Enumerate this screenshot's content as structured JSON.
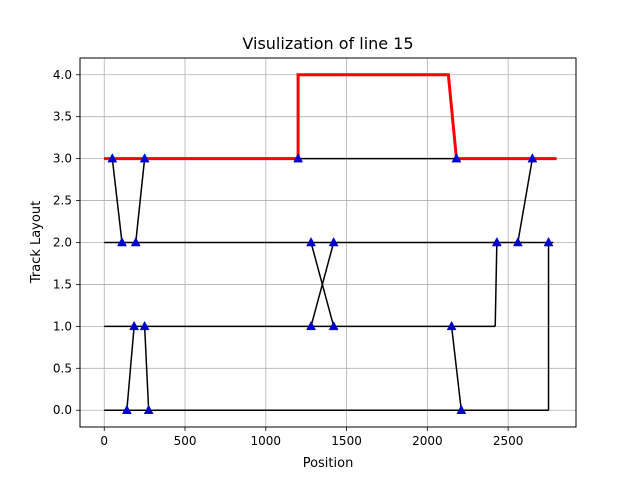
{
  "chart_data": {
    "type": "line",
    "title": "Visulization of line 15",
    "xlabel": "Position",
    "ylabel": "Track Layout",
    "xlim": [
      -150,
      2920
    ],
    "ylim": [
      -0.2,
      4.2
    ],
    "xticks": [
      0,
      500,
      1000,
      1500,
      2000,
      2500
    ],
    "yticks": [
      0.0,
      0.5,
      1.0,
      1.5,
      2.0,
      2.5,
      3.0,
      3.5,
      4.0
    ],
    "xtick_labels": [
      "0",
      "500",
      "1000",
      "1500",
      "2000",
      "2500"
    ],
    "ytick_labels": [
      "0.0",
      "0.5",
      "1.0",
      "1.5",
      "2.0",
      "2.5",
      "3.0",
      "3.5",
      "4.0"
    ],
    "grid": true,
    "colors": {
      "track": "#000000",
      "route": "#ff0000",
      "marker": "#0000cc"
    },
    "tracks": [
      {
        "y": 0,
        "x_start": 0,
        "x_end": 2750
      },
      {
        "y": 1,
        "x_start": 0,
        "x_end": 2420
      },
      {
        "y": 2,
        "x_start": 0,
        "x_end": 2780
      },
      {
        "y": 3,
        "x_start": 0,
        "x_end": 2780
      }
    ],
    "connections": [
      {
        "points": [
          [
            50,
            3
          ],
          [
            110,
            2
          ]
        ]
      },
      {
        "points": [
          [
            250,
            3
          ],
          [
            195,
            2
          ]
        ]
      },
      {
        "points": [
          [
            140,
            0
          ],
          [
            185,
            1
          ]
        ]
      },
      {
        "points": [
          [
            250,
            1
          ],
          [
            275,
            0
          ]
        ]
      },
      {
        "points": [
          [
            1280,
            2
          ],
          [
            1420,
            1
          ]
        ]
      },
      {
        "points": [
          [
            1280,
            1
          ],
          [
            1420,
            2
          ]
        ]
      },
      {
        "points": [
          [
            2150,
            1
          ],
          [
            2210,
            0
          ]
        ]
      },
      {
        "points": [
          [
            2420,
            1
          ],
          [
            2430,
            2
          ]
        ]
      },
      {
        "points": [
          [
            2560,
            2
          ],
          [
            2650,
            3
          ]
        ]
      },
      {
        "points": [
          [
            2750,
            0
          ],
          [
            2750,
            2
          ]
        ]
      }
    ],
    "markers": [
      [
        50,
        3
      ],
      [
        250,
        3
      ],
      [
        1200,
        3
      ],
      [
        2180,
        3
      ],
      [
        2650,
        3
      ],
      [
        110,
        2
      ],
      [
        195,
        2
      ],
      [
        1280,
        2
      ],
      [
        1420,
        2
      ],
      [
        2430,
        2
      ],
      [
        2560,
        2
      ],
      [
        2750,
        2
      ],
      [
        185,
        1
      ],
      [
        250,
        1
      ],
      [
        1280,
        1
      ],
      [
        1420,
        1
      ],
      [
        2150,
        1
      ],
      [
        140,
        0
      ],
      [
        275,
        0
      ],
      [
        2210,
        0
      ]
    ],
    "route": {
      "points": [
        [
          0,
          3
        ],
        [
          1200,
          3
        ],
        [
          1200,
          4
        ],
        [
          2130,
          4
        ],
        [
          2180,
          3
        ],
        [
          2800,
          3
        ]
      ]
    }
  }
}
